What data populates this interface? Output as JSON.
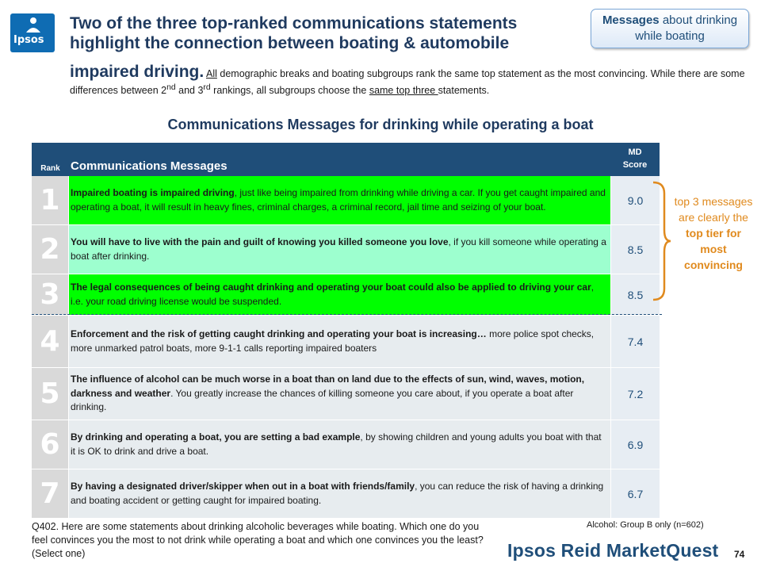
{
  "logo": {
    "text": "Ipsos"
  },
  "headline": {
    "main": "Two of the three top-ranked communications statements highlight the connection between boating & automobile",
    "tail_big": "impaired driving.",
    "tail_a_under": "All",
    "tail_a": " demographic breaks and boating subgroups rank the same top statement as the most convincing. While there are some differences between 2",
    "sup1": "nd",
    "tail_b": " and 3",
    "sup2": "rd",
    "tail_c": " rankings, all subgroups choose the ",
    "tail_c_under": "same top three ",
    "tail_d": "statements."
  },
  "tag": {
    "bold": "Messages",
    "rest": " about drinking while boating"
  },
  "table_title": "Communications Messages for drinking while operating a boat",
  "table": {
    "header": {
      "rank": "Rank",
      "message": "Communications  Messages",
      "score_line1": "MD",
      "score_line2": "Score"
    },
    "rows": [
      {
        "rank": "1",
        "bold": "Impaired boating is impaired driving",
        "text": ", just like being impaired from drinking while driving a car.  If you get caught impaired and operating a boat,  it will result in heavy fines, criminal charges, a criminal record, jail time and seizing of your boat.",
        "score": "9.0"
      },
      {
        "rank": "2",
        "bold": "You will have to live with the pain and guilt of knowing you killed someone you love",
        "text": ", if you kill someone while operating a boat after drinking.",
        "score": "8.5"
      },
      {
        "rank": "3",
        "bold": "The legal consequences of being caught drinking and operating your boat could also be applied to driving your car",
        "text": ", i.e. your road driving license would be suspended.",
        "score": "8.5"
      },
      {
        "rank": "4",
        "bold": "Enforcement and the risk of getting caught drinking and operating your boat is increasing…",
        "text": " more police spot checks, more unmarked patrol boats, more 9-1-1 calls reporting impaired boaters",
        "score": "7.4"
      },
      {
        "rank": "5",
        "bold": "The influence of alcohol can be much worse in a boat than on land due to the effects of sun, wind, waves, motion, darkness and weather",
        "text": ".  You greatly increase the chances of killing someone you care about,  if you operate a boat after drinking.",
        "score": "7.2"
      },
      {
        "rank": "6",
        "bold": "By drinking and operating a boat, you are setting a bad example",
        "text": ", by showing children and young adults you boat with that it is OK to drink and drive a boat.",
        "score": "6.9"
      },
      {
        "rank": "7",
        "bold": "By having a designated driver/skipper when out in a boat with friends/family",
        "text": ", you can reduce the risk of having a drinking and boating accident or getting caught for impaired boating.",
        "score": "6.7"
      }
    ]
  },
  "callout": {
    "a": "top 3 messages are clearly the ",
    "b": "top tier for most convincing"
  },
  "question": "Q402.  Here are some statements about drinking alcoholic beverages while boating.  Which one do you feel convinces you the most to not drink while operating a boat and which one convinces you the least?  (Select one)",
  "base": "Alcohol: Group B only (n=602)",
  "brand": "Ipsos Reid MarketQuest",
  "page_number": "74",
  "colors": {
    "header": "#1f4e79",
    "top_row": "#00ff00",
    "second_row": "#9dffcf",
    "callout": "#e08a1e"
  }
}
